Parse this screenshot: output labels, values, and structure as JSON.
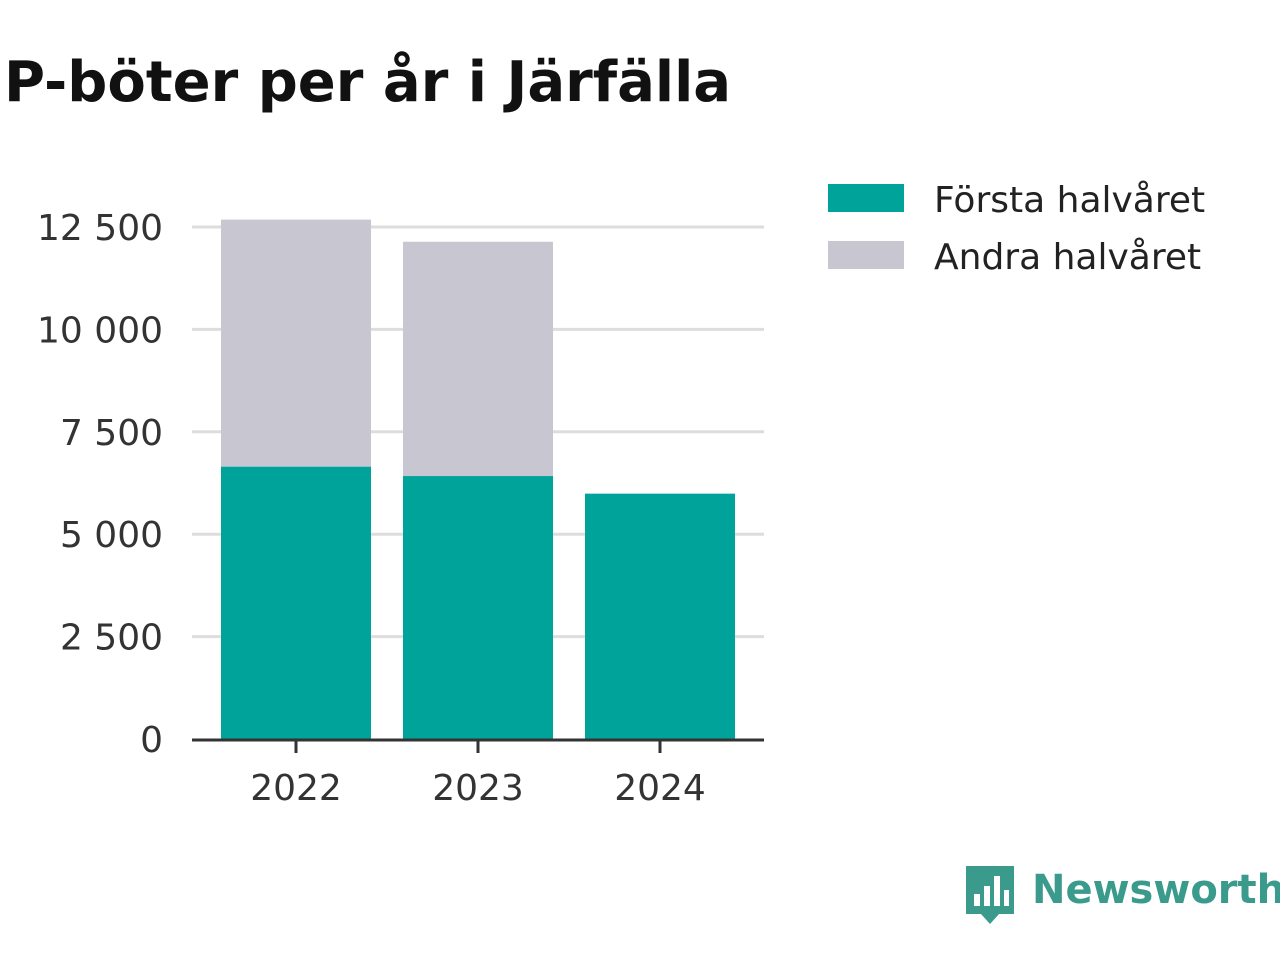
{
  "colors": {
    "first_half": "#00a39a",
    "second_half": "#c8c7d1",
    "grid": "#dddddd",
    "axis": "#333333",
    "brand": "#3a9a8c"
  },
  "brand": {
    "name": "Newsworthy",
    "icon": "newsworthy-logo-icon"
  },
  "chart_data": {
    "type": "bar",
    "stacked": true,
    "title": "P-böter per år i Järfälla",
    "xlabel": "",
    "ylabel": "",
    "categories": [
      "2022",
      "2023",
      "2024"
    ],
    "series": [
      {
        "name": "Första halvåret",
        "values": [
          6650,
          6420,
          5990
        ]
      },
      {
        "name": "Andra halvåret",
        "values": [
          6030,
          5720,
          0
        ]
      }
    ],
    "ylim": [
      0,
      12500
    ],
    "yticks": [
      0,
      2500,
      5000,
      7500,
      10000,
      12500
    ],
    "ytick_labels": [
      "0",
      "2 500",
      "5 000",
      "7 500",
      "10 000",
      "12 500"
    ],
    "grid": true,
    "legend_position": "top-right"
  }
}
